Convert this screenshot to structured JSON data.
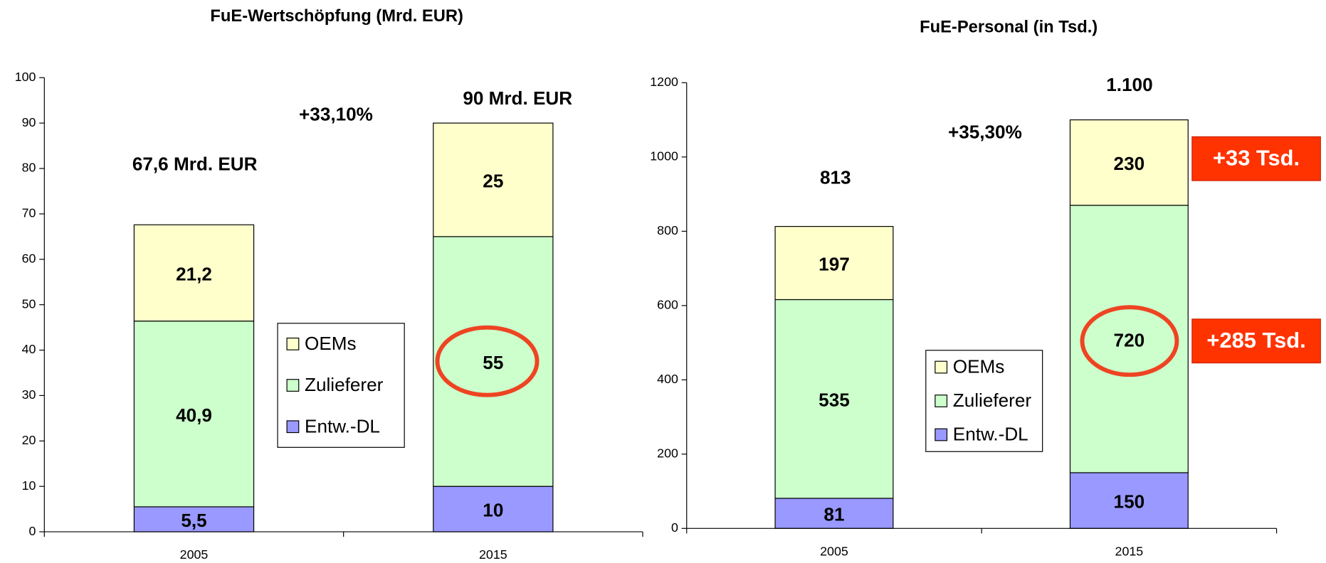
{
  "chart_data": [
    {
      "type": "bar",
      "stacked": true,
      "title": "FuE-Wertschöpfung (Mrd. EUR)",
      "categories": [
        "2005",
        "2015"
      ],
      "series": [
        {
          "name": "Entw.-DL",
          "color": "#9999ff",
          "values": [
            5.5,
            10
          ],
          "value_labels": [
            "5,5",
            "10"
          ]
        },
        {
          "name": "Zulieferer",
          "color": "#ccffcc",
          "values": [
            40.9,
            55
          ],
          "value_labels": [
            "40,9",
            "55"
          ]
        },
        {
          "name": "OEMs",
          "color": "#ffffcc",
          "values": [
            21.2,
            25
          ],
          "value_labels": [
            "21,2",
            "25"
          ]
        }
      ],
      "ylim": [
        0,
        100
      ],
      "yticks": [
        0,
        10,
        20,
        30,
        40,
        50,
        60,
        70,
        80,
        90,
        100
      ],
      "annotations": [
        "67,6 Mrd. EUR",
        "90 Mrd. EUR",
        "+33,10%"
      ]
    },
    {
      "type": "bar",
      "stacked": true,
      "title": "FuE-Personal (in Tsd.)",
      "categories": [
        "2005",
        "2015"
      ],
      "series": [
        {
          "name": "Entw.-DL",
          "color": "#9999ff",
          "values": [
            81,
            150
          ]
        },
        {
          "name": "Zulieferer",
          "color": "#ccffcc",
          "values": [
            535,
            720
          ]
        },
        {
          "name": "OEMs",
          "color": "#ffffcc",
          "values": [
            197,
            230
          ]
        }
      ],
      "ylim": [
        0,
        1200
      ],
      "yticks": [
        0,
        200,
        400,
        600,
        800,
        1000,
        1200
      ],
      "annotations": [
        "813",
        "1.100",
        "+35,30%",
        "+33 Tsd.",
        "+285 Tsd."
      ]
    }
  ]
}
